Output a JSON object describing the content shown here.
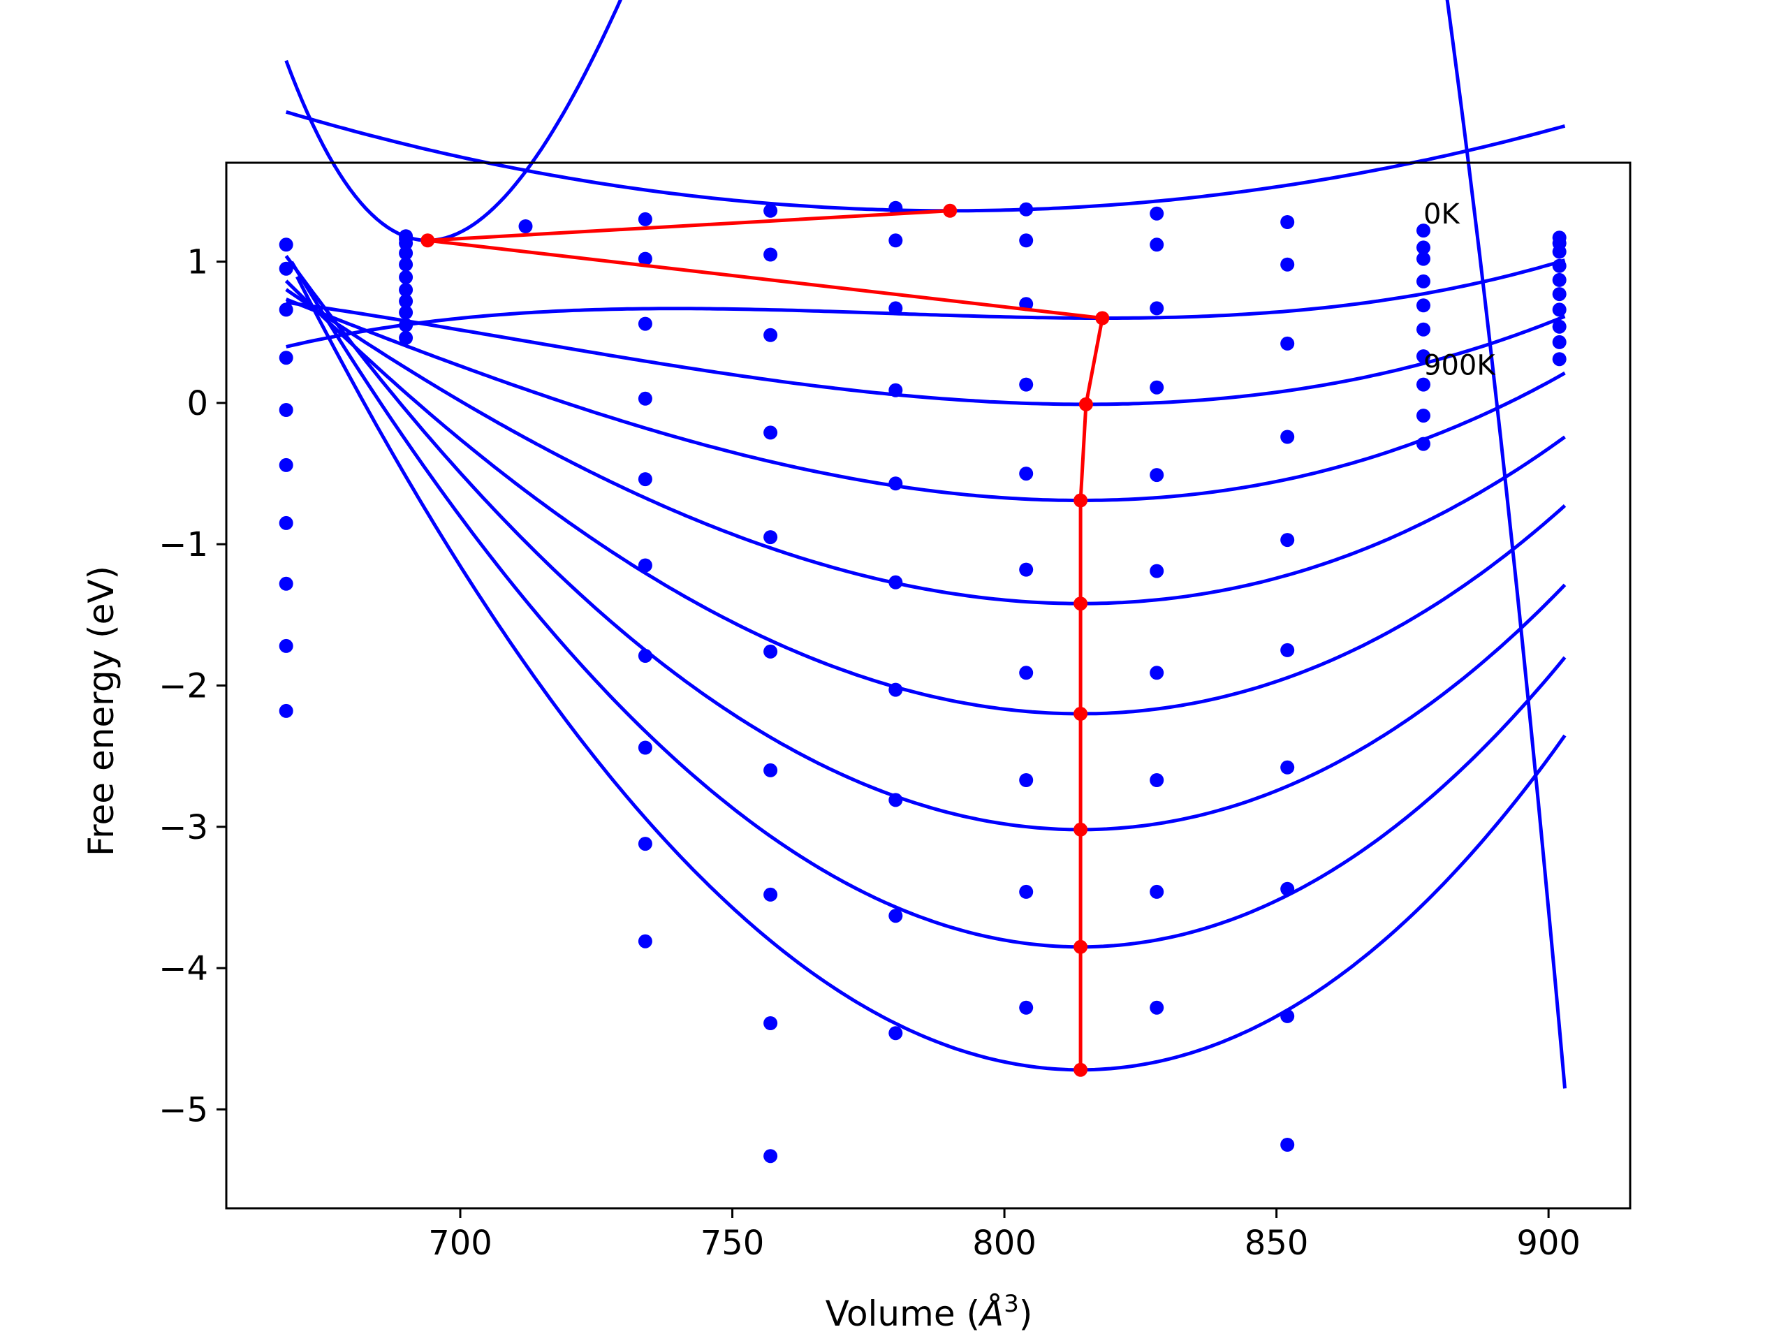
{
  "chart_data": {
    "type": "line",
    "title": "",
    "xlabel_prefix": "Volume (",
    "xlabel_unit": "Å",
    "xlabel_exp": "3",
    "xlabel_suffix": ")",
    "ylabel": "Free energy (eV)",
    "xlim": [
      657,
      915
    ],
    "ylim": [
      -5.7,
      1.7
    ],
    "x_ticks": [
      700,
      750,
      800,
      850,
      900
    ],
    "y_ticks": [
      1,
      0,
      -1,
      -2,
      -3,
      -4,
      -5
    ],
    "x_tick_labels": [
      "700",
      "750",
      "800",
      "850",
      "900"
    ],
    "y_tick_labels": [
      "1",
      "0",
      "−1",
      "−2",
      "−3",
      "−4",
      "−5"
    ],
    "grid": false,
    "annotations": [
      {
        "text": "0K",
        "x": 877,
        "y": 1.27
      },
      {
        "text": "900K",
        "x": 877,
        "y": 0.2
      }
    ],
    "fit_volumes": [
      668,
      690,
      712,
      734,
      757,
      780,
      804,
      828,
      852,
      877,
      902
    ],
    "fit_volume_range": [
      668,
      903
    ],
    "curves": [
      {
        "vmin": 790,
        "fmin": 1.36,
        "a": 4.7e-05,
        "b": 0,
        "vstart": 668
      },
      {
        "vmin": 694,
        "fmin": 1.15,
        "a": 0.00166,
        "b": -8.6e-06,
        "vstart": 668
      },
      {
        "vmin": 818,
        "fmin": 0.6,
        "a": 3.3e-05,
        "b": 2.8e-07,
        "vstart": 668
      },
      {
        "vmin": 815,
        "fmin": -0.01,
        "a": 6.28e-05,
        "b": 2e-07,
        "vstart": 668
      },
      {
        "vmin": 814,
        "fmin": -0.69,
        "a": 9.6e-05,
        "b": 2e-07,
        "vstart": 668
      },
      {
        "vmin": 814,
        "fmin": -1.42,
        "a": 0.000132,
        "b": 1.9e-07,
        "vstart": 668
      },
      {
        "vmin": 814,
        "fmin": -2.2,
        "a": 0.00017,
        "b": 1.8e-07,
        "vstart": 668
      },
      {
        "vmin": 814,
        "fmin": -3.02,
        "a": 0.000208,
        "b": 1.2e-07,
        "vstart": 668
      },
      {
        "vmin": 814,
        "fmin": -3.85,
        "a": 0.000248,
        "b": 1.2e-07,
        "vstart": 669
      },
      {
        "vmin": 814,
        "fmin": -4.72,
        "a": 0.000288,
        "b": 1.2e-07,
        "vstart": 670
      }
    ],
    "points_x": [
      668,
      690,
      734,
      757,
      780,
      804,
      828,
      852,
      877,
      902
    ],
    "points_y": [
      [
        1.12,
        1.18,
        1.3,
        1.36,
        1.38,
        1.37,
        1.34,
        1.28,
        1.22,
        1.17
      ],
      [
        0.95,
        1.13,
        1.02,
        1.05,
        1.15,
        1.15,
        1.12,
        0.98,
        1.1,
        1.13
      ],
      [
        0.66,
        1.06,
        0.56,
        0.48,
        0.67,
        0.7,
        0.67,
        0.42,
        1.02,
        1.07
      ],
      [
        0.32,
        0.98,
        0.03,
        -0.21,
        0.09,
        0.13,
        0.11,
        -0.24,
        0.86,
        0.97
      ],
      [
        -0.05,
        0.89,
        -0.54,
        -0.95,
        -0.57,
        -0.5,
        -0.51,
        -0.97,
        0.69,
        0.87
      ],
      [
        -0.44,
        0.8,
        -1.15,
        -1.76,
        -1.27,
        -1.18,
        -1.19,
        -1.75,
        0.52,
        0.77
      ],
      [
        -0.85,
        0.72,
        -1.79,
        -2.6,
        -2.03,
        -1.91,
        -1.91,
        -2.58,
        0.33,
        0.66
      ],
      [
        -1.28,
        0.64,
        -2.44,
        -3.48,
        -2.81,
        -2.67,
        -2.67,
        -3.44,
        0.13,
        0.54
      ],
      [
        -1.72,
        0.55,
        -3.12,
        -4.39,
        -3.63,
        -3.46,
        -3.46,
        -4.34,
        -0.09,
        0.43
      ],
      [
        -2.18,
        0.46,
        -3.81,
        -5.33,
        -4.46,
        -4.28,
        -4.28,
        -5.25,
        -0.29,
        0.31
      ]
    ],
    "extra_points": [
      {
        "x": 712,
        "y": 1.25
      },
      {
        "x": 690,
        "y": 1.16
      }
    ],
    "minima_line": {
      "x": [
        790,
        694,
        818,
        815,
        814,
        814,
        814,
        814,
        814,
        814
      ],
      "y": [
        1.36,
        1.15,
        0.6,
        -0.01,
        -0.69,
        -1.42,
        -2.2,
        -3.02,
        -3.85,
        -4.72
      ]
    },
    "colors": {
      "curves": "#0000ff",
      "points": "#0000ff",
      "minima": "#ff0000",
      "axes": "#000000"
    }
  }
}
